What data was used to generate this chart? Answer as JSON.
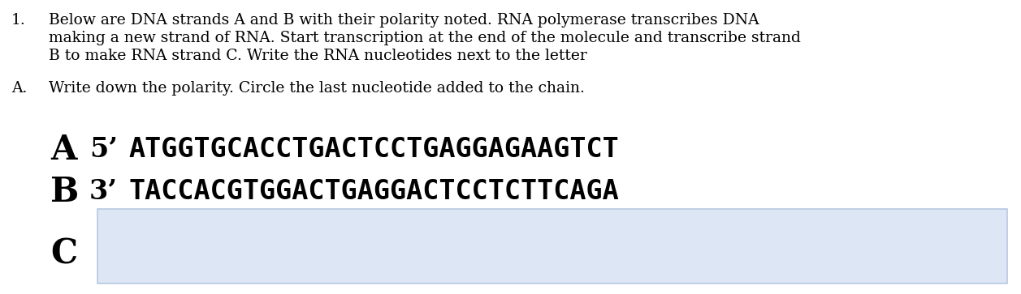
{
  "bg_color": "#ffffff",
  "text_color": "#000000",
  "paragraph1_number": "1.",
  "paragraph1_line1": "Below are DNA strands A and B with their polarity noted. RNA polymerase transcribes DNA",
  "paragraph1_line2": "making a new strand of RNA. Start transcription at the end of the molecule and transcribe strand",
  "paragraph1_line3": "B to make RNA strand C. Write the RNA nucleotides next to the letter",
  "paragraph2_letter": "A.",
  "paragraph2_text": "Write down the polarity. Circle the last nucleotide added to the chain.",
  "strand_A_label": "A",
  "strand_A_polarity": "5’",
  "strand_A_seq": "ATGGTGCACCTGACTCCTGAGGAGAAGTCT",
  "strand_B_label": "B",
  "strand_B_polarity": "3’",
  "strand_B_seq": "TACCACGTGGACTGAGGACTCCTCTTCAGA",
  "strand_C_label": "C",
  "strand_C_box_color": "#dce6f5",
  "strand_C_box_linecolor": "#b8c8e0",
  "body_fontsize": 13.5,
  "strand_label_fontsize": 30,
  "strand_polarity_fontsize": 24,
  "strand_seq_fontsize": 24,
  "strand_C_label_fontsize": 30,
  "fig_width": 12.57,
  "fig_height": 3.63,
  "dpi": 100
}
